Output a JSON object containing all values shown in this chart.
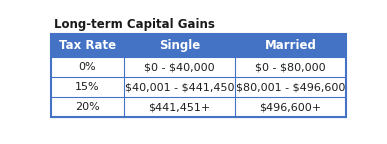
{
  "title": "Long-term Capital Gains",
  "header": [
    "Tax Rate",
    "Single",
    "Married"
  ],
  "rows": [
    [
      "0%",
      "$0 - $40,000",
      "$0 - $80,000"
    ],
    [
      "15%",
      "$40,001 - $441,450",
      "$80,001 - $496,600"
    ],
    [
      "20%",
      "$441,451+",
      "$496,600+"
    ]
  ],
  "header_bg": "#4472C4",
  "header_text": "#FFFFFF",
  "row_bg": "#FFFFFF",
  "row_text": "#1F1F1F",
  "border_color": "#4472C4",
  "title_color": "#1a1a1a",
  "outer_bg": "#FFFFFF",
  "title_fontsize": 8.5,
  "header_fontsize": 8.5,
  "cell_fontsize": 8.0
}
